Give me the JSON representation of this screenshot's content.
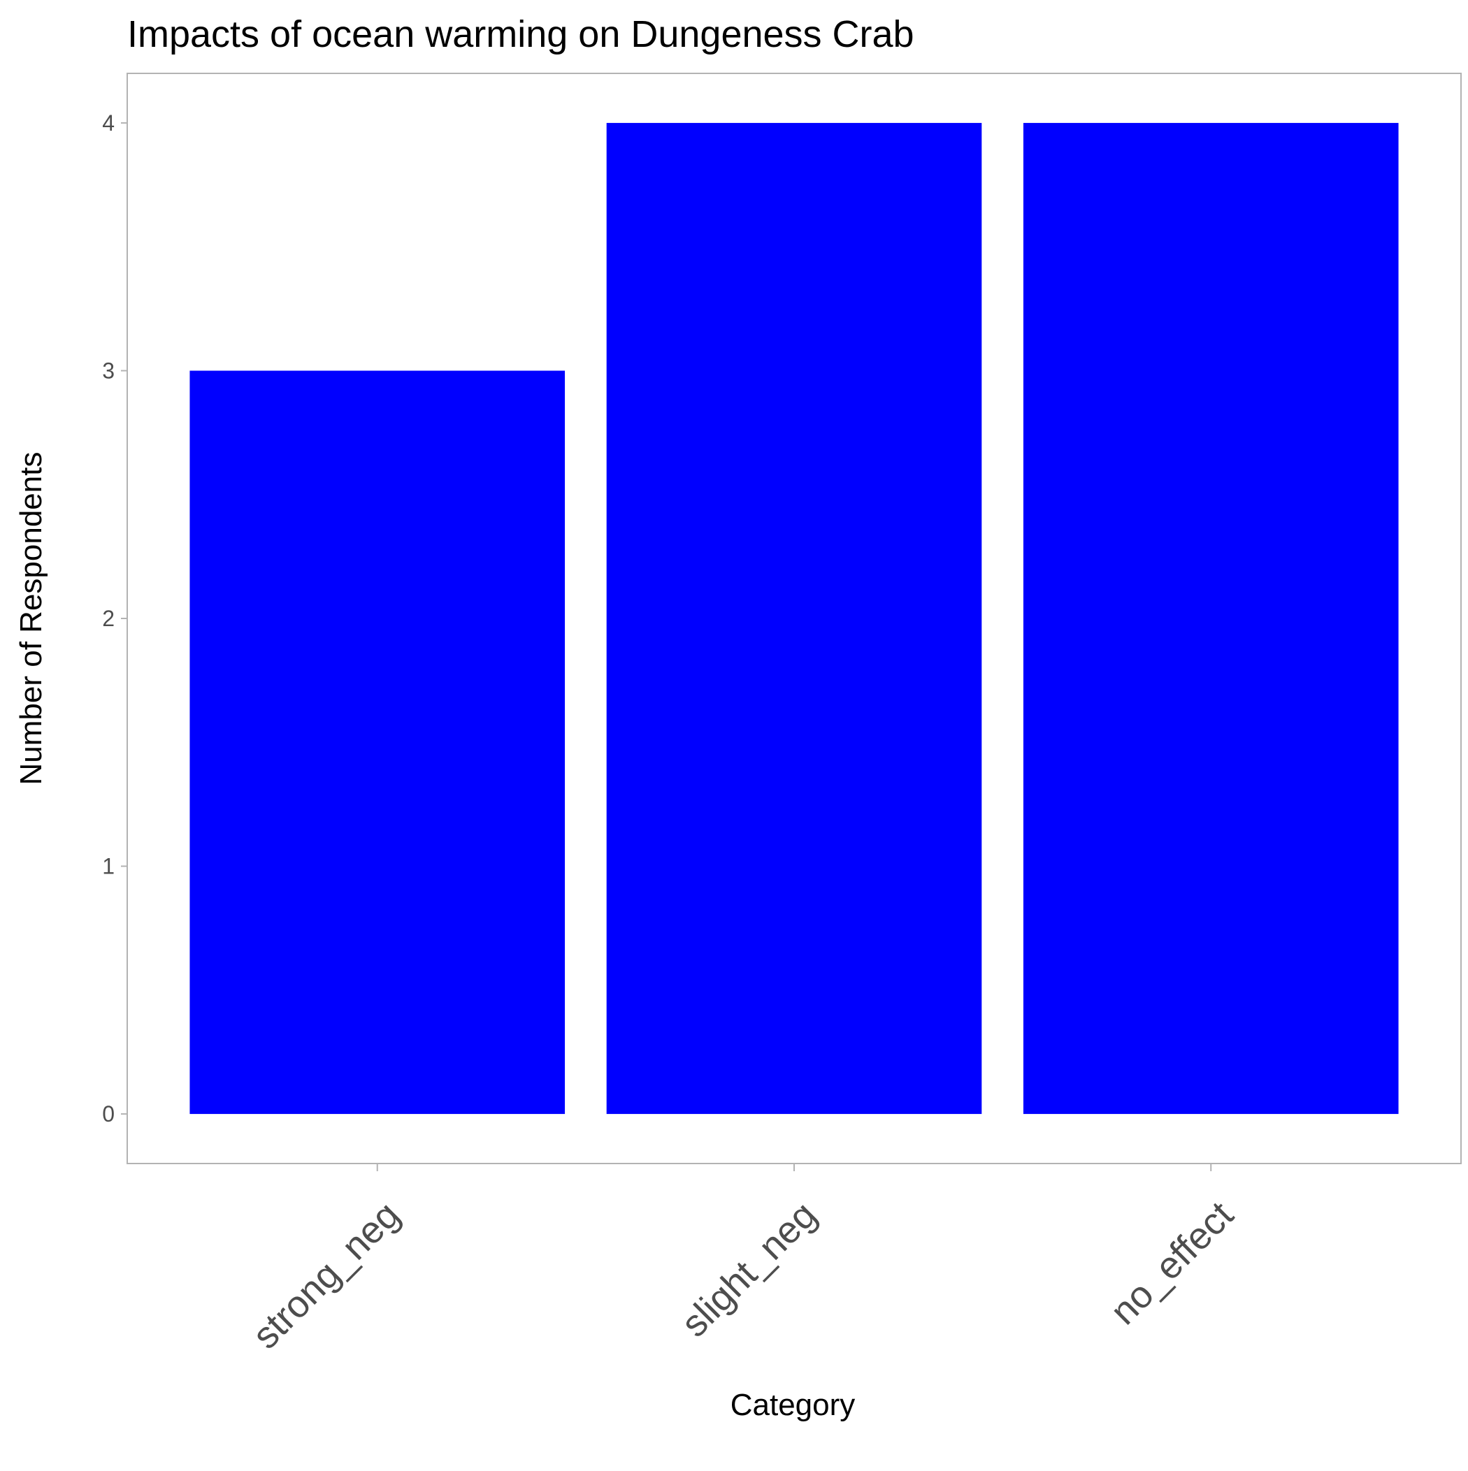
{
  "chart_data": {
    "type": "bar",
    "title": "Impacts of ocean warming on Dungeness Crab",
    "xlabel": "Category",
    "ylabel": "Number of Respondents",
    "categories": [
      "strong_neg",
      "slight_neg",
      "no_effect"
    ],
    "values": [
      3,
      4,
      4
    ],
    "ylim": [
      -0.2,
      4.2
    ],
    "yticks": [
      0,
      1,
      2,
      3,
      4
    ],
    "grid": false,
    "legend": "none",
    "colors": {
      "bar": "#0000ff",
      "panel_border": "#b3b3b3",
      "tick": "#b3b3b3",
      "tick_label": "#4d4d4d",
      "text": "#000000"
    }
  }
}
